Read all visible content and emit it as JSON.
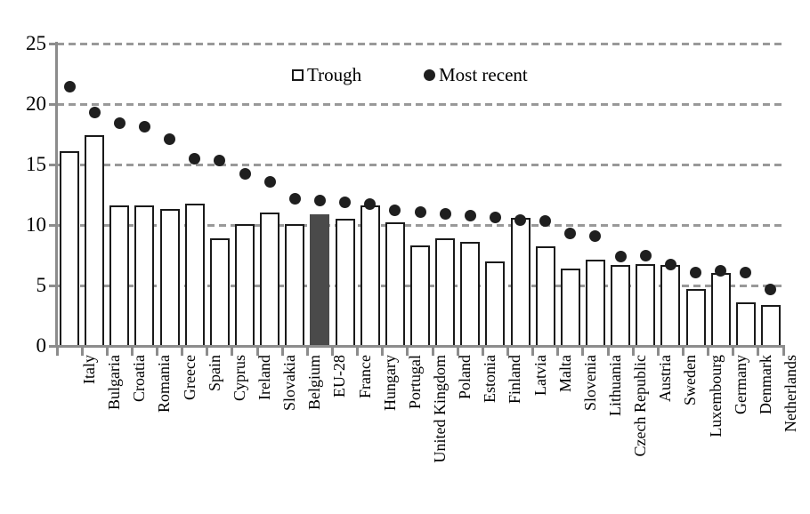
{
  "chart_data": {
    "type": "bar",
    "title": "",
    "xlabel": "",
    "ylabel": "",
    "categories": [
      "Italy",
      "Bulgaria",
      "Croatia",
      "Romania",
      "Greece",
      "Spain",
      "Cyprus",
      "Ireland",
      "Slovakia",
      "Belgium",
      "EU-28",
      "France",
      "Hungary",
      "Portugal",
      "United Kingdom",
      "Poland",
      "Estonia",
      "Finland",
      "Latvia",
      "Malta",
      "Slovenia",
      "Lithuania",
      "Czech Republic",
      "Austria",
      "Sweden",
      "Luxembourg",
      "Germany",
      "Denmark",
      "Netherlands"
    ],
    "series": [
      {
        "name": "Trough",
        "type": "bar",
        "values": [
          16.1,
          17.4,
          11.6,
          11.6,
          11.3,
          11.8,
          8.9,
          10.1,
          11.0,
          10.1,
          10.9,
          10.5,
          11.6,
          10.2,
          8.3,
          8.9,
          8.6,
          7.0,
          10.6,
          8.2,
          6.4,
          7.1,
          6.7,
          6.8,
          6.7,
          4.7,
          6.0,
          3.6,
          3.4
        ]
      },
      {
        "name": "Most recent",
        "type": "scatter",
        "values": [
          21.4,
          19.3,
          18.4,
          18.1,
          17.1,
          15.5,
          15.3,
          14.2,
          13.6,
          12.2,
          12.0,
          11.9,
          11.7,
          11.2,
          11.1,
          10.9,
          10.8,
          10.6,
          10.4,
          10.3,
          9.3,
          9.1,
          7.4,
          7.5,
          6.7,
          6.1,
          6.2,
          6.1,
          4.7
        ]
      }
    ],
    "ylim": [
      0,
      25
    ],
    "yticks": [
      0,
      5,
      10,
      15,
      20,
      25
    ],
    "grid": "horizontal-dashed",
    "legend_position": "top-center",
    "highlight_category": "EU-28"
  },
  "colors": {
    "bar_fill": "#ffffff",
    "bar_border": "#1a1a1a",
    "highlight_fill": "#4a4a4a",
    "dot": "#1f1f1f",
    "axis": "#8c8c8c",
    "gridline": "#999999",
    "text": "#000000"
  }
}
